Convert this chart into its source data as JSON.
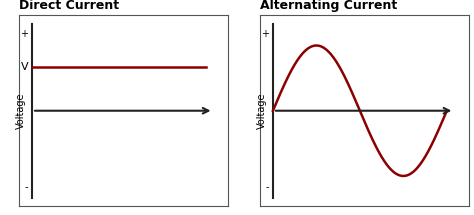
{
  "title_dc": "Direct Current",
  "title_ac": "Alternating Current",
  "ylabel": "Voltage",
  "dc_color": "#8B0000",
  "ac_color": "#8B0000",
  "axis_color": "#222222",
  "title_fontsize": 9,
  "label_fontsize": 7,
  "tick_label_fontsize": 7,
  "background_color": "#ffffff",
  "border_color": "#aaaaaa",
  "dc_voltage_level": 0.5,
  "ac_amplitude": 0.75,
  "ac_frequency": 1.0,
  "plus_label": "+",
  "minus_label": "-",
  "v_label": "V"
}
